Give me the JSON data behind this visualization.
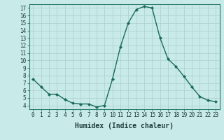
{
  "x": [
    0,
    1,
    2,
    3,
    4,
    5,
    6,
    7,
    8,
    9,
    10,
    11,
    12,
    13,
    14,
    15,
    16,
    17,
    18,
    19,
    20,
    21,
    22,
    23
  ],
  "y": [
    7.5,
    6.5,
    5.5,
    5.5,
    4.8,
    4.3,
    4.2,
    4.2,
    3.8,
    4.0,
    7.5,
    11.8,
    15.0,
    16.8,
    17.2,
    17.0,
    13.0,
    10.2,
    9.2,
    7.9,
    6.5,
    5.2,
    4.7,
    4.5
  ],
  "line_color": "#1a6b5a",
  "marker": "D",
  "marker_size": 2,
  "bg_color": "#c8eae8",
  "grid_color": "#afd4d0",
  "xlabel": "Humidex (Indice chaleur)",
  "xlim": [
    -0.5,
    23.5
  ],
  "ylim": [
    3.5,
    17.5
  ],
  "yticks": [
    4,
    5,
    6,
    7,
    8,
    9,
    10,
    11,
    12,
    13,
    14,
    15,
    16,
    17
  ],
  "xticks": [
    0,
    1,
    2,
    3,
    4,
    5,
    6,
    7,
    8,
    9,
    10,
    11,
    12,
    13,
    14,
    15,
    16,
    17,
    18,
    19,
    20,
    21,
    22,
    23
  ],
  "tick_fontsize": 5.5,
  "xlabel_fontsize": 7,
  "spine_color": "#2a7a6a"
}
